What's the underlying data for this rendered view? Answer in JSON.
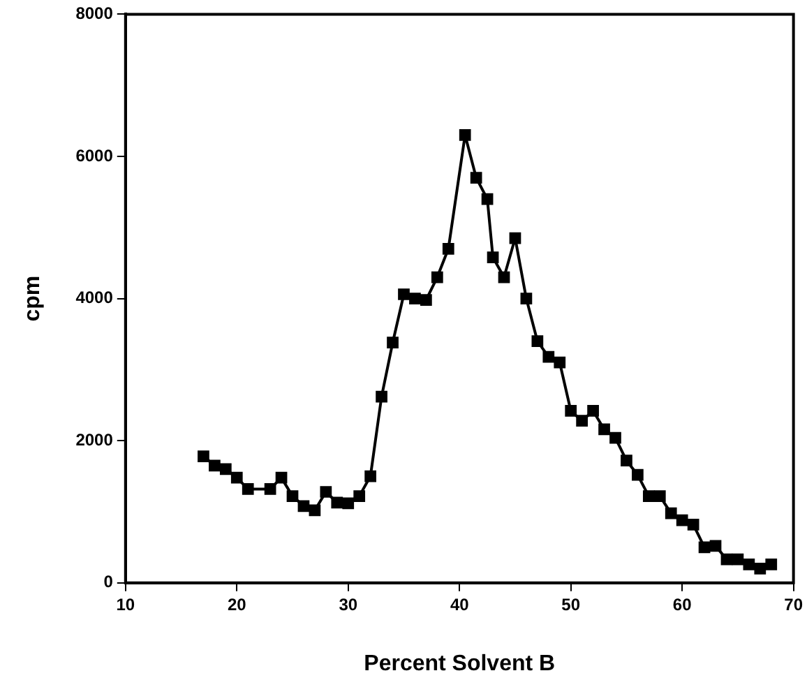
{
  "chart_data": {
    "type": "line",
    "xlabel": "Percent Solvent B",
    "ylabel": "cpm",
    "x": [
      17,
      18,
      19,
      20,
      21,
      23,
      24,
      25,
      26,
      27,
      28,
      29,
      30,
      31,
      32,
      33,
      34,
      35,
      36,
      37,
      38,
      39,
      40.5,
      41.5,
      42.5,
      43,
      44,
      45,
      46,
      47,
      48,
      49,
      50,
      51,
      52,
      53,
      54,
      55,
      56,
      57,
      58,
      59,
      60,
      61,
      62,
      63,
      64,
      65,
      66,
      67,
      68
    ],
    "series": [
      {
        "color": "#000000",
        "values": [
          1780,
          1650,
          1600,
          1480,
          1320,
          1320,
          1480,
          1220,
          1080,
          1020,
          1280,
          1130,
          1120,
          1220,
          1500,
          2620,
          3380,
          4060,
          4000,
          3980,
          4300,
          4700,
          6300,
          5700,
          5400,
          4580,
          4300,
          4850,
          4000,
          3400,
          3180,
          3100,
          2420,
          2280,
          2420,
          2160,
          2040,
          1720,
          1520,
          1220,
          1220,
          980,
          880,
          820,
          500,
          520,
          330,
          330,
          260,
          200,
          260
        ]
      }
    ],
    "xlim": [
      10,
      70
    ],
    "xticks": [
      10,
      20,
      30,
      40,
      50,
      60,
      70
    ],
    "ylim": [
      0,
      8000
    ],
    "yticks": [
      0,
      2000,
      4000,
      6000,
      8000
    ],
    "grid": false,
    "legend": false,
    "marker": "square",
    "line_style": "solid"
  }
}
